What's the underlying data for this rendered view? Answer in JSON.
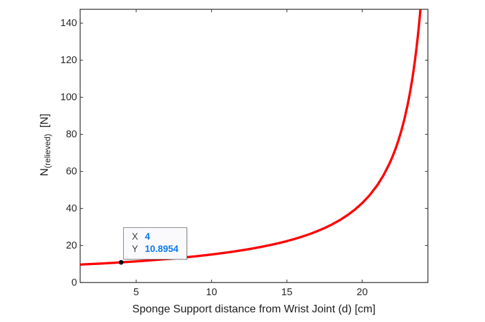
{
  "figure": {
    "background": "#FFFFFF"
  },
  "colors": {
    "axis": "#4a4a4a",
    "tick_text": "#262626",
    "curve": "#FF0000",
    "datatip_value": "#0878F0",
    "datatip_border": "#8F8F8F",
    "datatip_bg": "#FAFAFD",
    "marker": "#000000"
  },
  "chart_data": {
    "type": "line",
    "title": "",
    "xlabel": "Sponge Support distance from Wrist Joint (d) [cm]",
    "ylabel": "N(relieved)  [N]",
    "ylabel_rich": {
      "main": "N",
      "sub": "(relieved)",
      "unit": "[N]"
    },
    "xlim": [
      1.28,
      24.36
    ],
    "ylim": [
      0,
      147.5
    ],
    "xticks": [
      5,
      10,
      15,
      20
    ],
    "yticks": [
      0,
      20,
      40,
      60,
      80,
      100,
      120,
      140
    ],
    "grid": false,
    "box": true,
    "legend": null,
    "series": [
      {
        "color": "#FF0000",
        "line_width": 3.4,
        "points": [
          [
            1.28,
            9.67
          ],
          [
            1.6,
            9.83
          ],
          [
            2,
            9.97
          ],
          [
            2.5,
            10.18
          ],
          [
            3,
            10.41
          ],
          [
            3.5,
            10.65
          ],
          [
            4,
            10.9
          ],
          [
            4.5,
            11.16
          ],
          [
            5,
            11.43
          ],
          [
            5.5,
            11.71
          ],
          [
            6,
            12.02
          ],
          [
            6.5,
            12.33
          ],
          [
            7,
            12.67
          ],
          [
            7.5,
            13.02
          ],
          [
            8,
            13.39
          ],
          [
            8.5,
            13.79
          ],
          [
            9,
            14.21
          ],
          [
            9.5,
            14.65
          ],
          [
            10,
            15.13
          ],
          [
            10.5,
            15.63
          ],
          [
            11,
            16.17
          ],
          [
            11.5,
            16.75
          ],
          [
            12,
            17.38
          ],
          [
            12.5,
            18.05
          ],
          [
            13,
            18.77
          ],
          [
            13.5,
            19.56
          ],
          [
            14,
            20.41
          ],
          [
            14.5,
            21.34
          ],
          [
            15,
            22.36
          ],
          [
            15.5,
            23.49
          ],
          [
            16,
            24.73
          ],
          [
            16.5,
            26.11
          ],
          [
            17,
            27.66
          ],
          [
            17.5,
            29.4
          ],
          [
            18,
            31.37
          ],
          [
            18.5,
            33.63
          ],
          [
            19,
            36.23
          ],
          [
            19.5,
            39.28
          ],
          [
            20,
            42.88
          ],
          [
            20.5,
            47.21
          ],
          [
            21,
            52.52
          ],
          [
            21.4,
            57.7
          ],
          [
            21.8,
            64.03
          ],
          [
            22,
            67.74
          ],
          [
            22.2,
            71.91
          ],
          [
            22.4,
            76.62
          ],
          [
            22.6,
            82.0
          ],
          [
            22.8,
            88.19
          ],
          [
            23,
            95.39
          ],
          [
            23.1,
            99.45
          ],
          [
            23.2,
            103.87
          ],
          [
            23.3,
            108.7
          ],
          [
            23.4,
            114.0
          ],
          [
            23.5,
            119.85
          ],
          [
            23.6,
            126.32
          ],
          [
            23.7,
            133.54
          ],
          [
            23.8,
            141.64
          ],
          [
            23.9,
            150.77
          ],
          [
            24,
            161.17
          ],
          [
            24.1,
            173.11
          ],
          [
            24.2,
            186.96
          ],
          [
            24.3,
            203.22
          ]
        ]
      }
    ],
    "datatip": {
      "x": 4,
      "y": 10.8954,
      "x_label": "X",
      "y_label": "Y",
      "x_value": "4",
      "y_value": "10.8954",
      "value_color": "#0878F0"
    }
  }
}
